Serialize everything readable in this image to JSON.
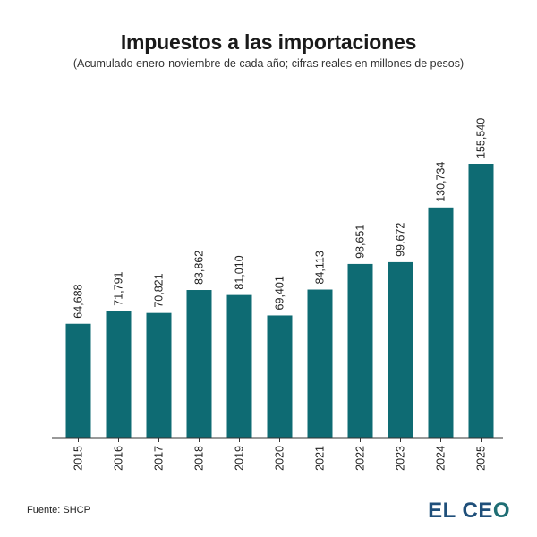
{
  "title": "Impuestos a las importaciones",
  "subtitle": "(Acumulado enero-noviembre de cada año; cifras reales en millones de pesos)",
  "source": "Fuente: SHCP",
  "logo": "EL CEO",
  "colors": {
    "bar": "#0e6b73",
    "axis": "#333333",
    "text": "#222222"
  },
  "chart_data": {
    "type": "bar",
    "title": "Impuestos a las importaciones",
    "subtitle": "(Acumulado enero-noviembre de cada año; cifras reales en millones de pesos)",
    "categories": [
      "2015",
      "2016",
      "2017",
      "2018",
      "2019",
      "2020",
      "2021",
      "2022",
      "2023",
      "2024",
      "2025"
    ],
    "values": [
      64688,
      71791,
      70821,
      83862,
      81010,
      69401,
      84113,
      98651,
      99672,
      130734,
      155540
    ],
    "value_labels": [
      "64,688",
      "71,791",
      "70,821",
      "83,862",
      "81,010",
      "69,401",
      "84,113",
      "98,651",
      "99,672",
      "130,734",
      "155,540"
    ],
    "xlabel": "",
    "ylabel": "",
    "ylim": [
      0,
      155540
    ],
    "grid": false,
    "legend": "none"
  }
}
